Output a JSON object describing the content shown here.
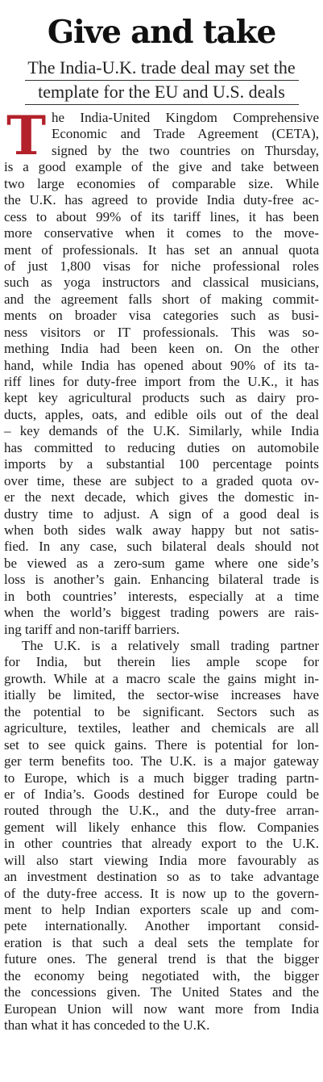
{
  "article": {
    "headline": "Give and take",
    "deck_lines": [
      "The India-U.K. trade deal may set the",
      "template for the EU and U.S. deals"
    ],
    "drop_cap": "T",
    "paragraph1_lines": [
      "he India-United Kingdom Comprehensive",
      "Economic and Trade Agreement (CETA),",
      "signed by the two countries on Thursday,",
      "is a good example of the give and take between",
      "two large economies of comparable size. While",
      "the U.K. has agreed to provide India duty-free ac-",
      "cess to about 99% of its tariff lines, it has been",
      "more conservative when it comes to the move-",
      "ment of professionals. It has set an annual quota",
      "of just 1,800 visas for niche professional roles",
      "such as yoga instructors and classical musicians,",
      "and the agreement falls short of making commit-",
      "ments on broader visa categories such as busi-",
      "ness visitors or IT professionals. This was so-",
      "mething India had been keen on. On the other",
      "hand, while India has opened about 90% of its ta-",
      "riff lines for duty-free import from the U.K., it has",
      "kept key agricultural products such as dairy pro-",
      "ducts, apples, oats, and edible oils out of the deal",
      "– key demands of the U.K. Similarly, while India",
      "has committed to reducing duties on automobile",
      "imports by a substantial 100 percentage points",
      "over time, these are subject to a graded quota ov-",
      "er the next decade, which gives the domestic in-",
      "dustry time to adjust. A sign of a good deal is",
      "when both sides walk away happy but not satis-",
      "fied. In any case, such bilateral deals should not",
      "be viewed as a zero-sum game where one side’s",
      "loss is another’s gain. Enhancing bilateral trade is",
      "in both countries’ interests, especially at a time",
      "when the world’s biggest trading powers are rais-",
      "ing tariff and non-tariff barriers."
    ],
    "paragraph2_lines": [
      "The U.K. is a relatively small trading partner",
      "for India, but therein lies ample scope for",
      "growth. While at a macro scale the gains might in-",
      "itially be limited, the sector-wise increases have",
      "the potential to be significant. Sectors such as",
      "agriculture, textiles, leather and chemicals are all",
      "set to see quick gains. There is potential for lon-",
      "ger term benefits too. The U.K. is a major gateway",
      "to Europe, which is a much bigger trading partn-",
      "er of India’s. Goods destined for Europe could be",
      "routed through the U.K., and the duty-free arran-",
      "gement will likely enhance this flow. Companies",
      "in other countries that already export to the U.K.",
      "will also start viewing India more favourably as",
      "an investment destination so as to take advantage",
      "of the duty-free access. It is now up to the govern-",
      "ment to help Indian exporters scale up and com-",
      "pete internationally. Another important consid-",
      "eration is that such a deal sets the template for",
      "future ones. The general trend is that the bigger",
      "the economy being negotiated with, the bigger",
      "the concessions given. The United States and the",
      "European Union will now want more from India",
      "than what it has conceded to the U.K."
    ]
  },
  "colors": {
    "drop_cap": "#b3212a",
    "text": "#1a1a1a",
    "background": "#ffffff"
  }
}
